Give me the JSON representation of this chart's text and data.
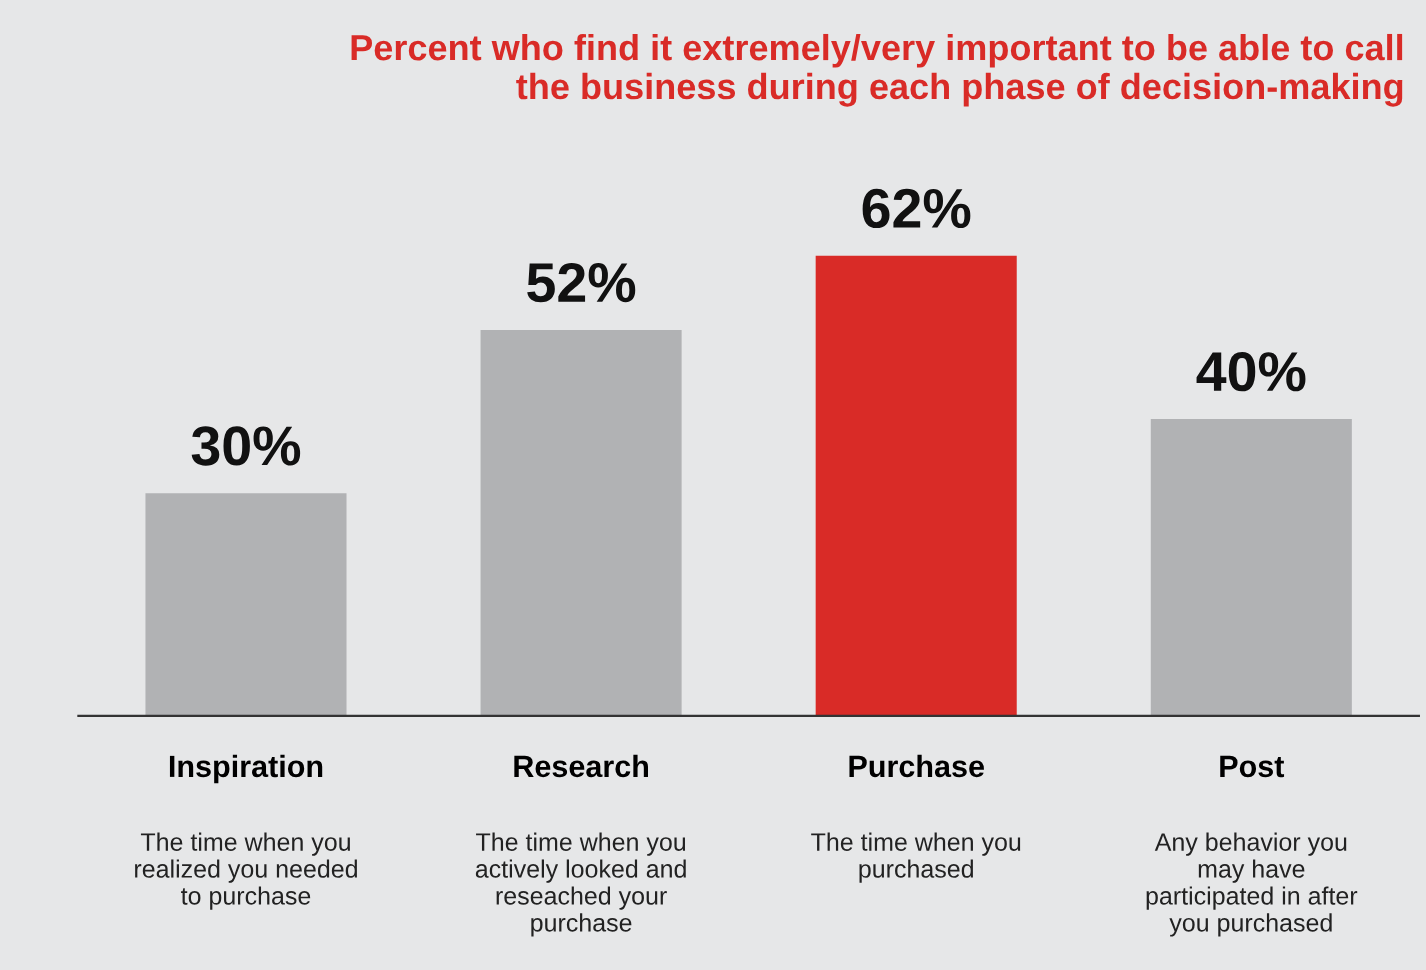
{
  "chart_data": {
    "type": "bar",
    "title": "Percent who find it extremely/very important to be able to call\nthe business during each phase of decision-making",
    "categories": [
      "Inspiration",
      "Research",
      "Purchase",
      "Post"
    ],
    "values": [
      30,
      52,
      62,
      40
    ],
    "colors": [
      "#b1b2b4",
      "#b1b2b4",
      "#d92b27",
      "#b1b2b4"
    ],
    "value_labels": [
      "30%",
      "52%",
      "62%",
      "40%"
    ],
    "annotations": [
      "The time when you\nrealized you needed\nto purchase",
      "The time when you\nactively looked and\nreseached your\npurchase",
      "The time when you\npurchased",
      "Any behavior you\nmay have\nparticipated in after\nyou purchased"
    ],
    "grid": false
  }
}
